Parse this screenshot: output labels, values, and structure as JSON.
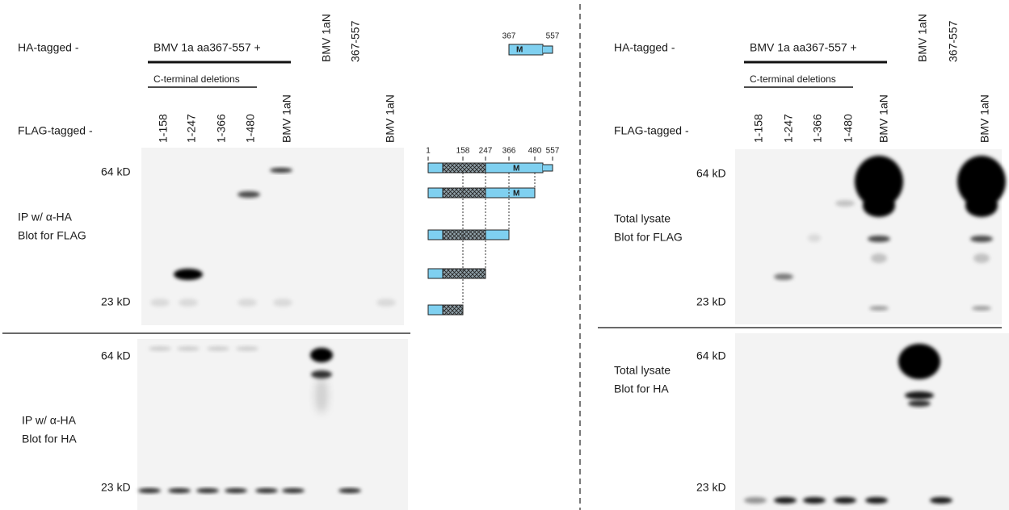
{
  "left": {
    "ha_tagged": "HA-tagged -",
    "construct": "BMV 1a aa367-557 +",
    "ha_lanes": [
      "BMV 1aN",
      "367-557"
    ],
    "deletion_label": "C-terminal deletions",
    "flag_tagged": "FLAG-tagged -",
    "flag_lanes": [
      "1-158",
      "1-247",
      "1-366",
      "1-480",
      "BMV 1aN",
      "BMV 1aN"
    ],
    "blots": [
      {
        "markers": [
          "64 kD",
          "23 kD"
        ],
        "label": [
          "IP w/ α-HA",
          "Blot for FLAG"
        ]
      },
      {
        "markers": [
          "64 kD",
          "23 kD"
        ],
        "label": [
          "IP w/ α-HA",
          "Blot for HA"
        ]
      }
    ]
  },
  "diagram": {
    "fragment_ends": [
      367,
      557
    ],
    "positions": [
      1,
      158,
      247,
      366,
      480,
      557
    ],
    "domain": "M"
  },
  "right": {
    "ha_tagged": "HA-tagged -",
    "construct": "BMV 1a aa367-557 +",
    "ha_lanes": [
      "BMV 1aN",
      "367-557"
    ],
    "deletion_label": "C-terminal deletions",
    "flag_tagged": "FLAG-tagged -",
    "flag_lanes": [
      "1-158",
      "1-247",
      "1-366",
      "1-480",
      "BMV 1aN",
      "BMV 1aN"
    ],
    "blots": [
      {
        "markers": [
          "64 kD",
          "23 kD"
        ],
        "label": [
          "Total lysate",
          "Blot for FLAG"
        ]
      },
      {
        "markers": [
          "64 kD",
          "23 kD"
        ],
        "label": [
          "Total lysate",
          "Blot for HA"
        ]
      }
    ]
  }
}
